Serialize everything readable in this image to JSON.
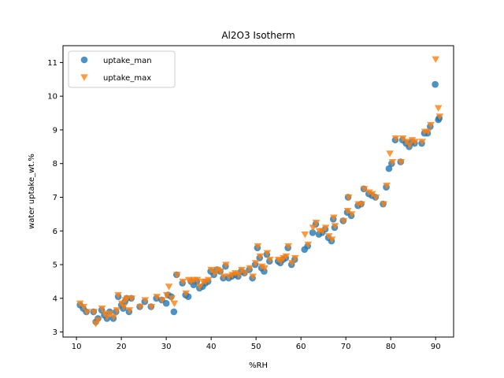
{
  "chart_data": {
    "type": "scatter",
    "title": "Al2O3 Isotherm",
    "xlabel": "%RH",
    "ylabel": "water uptake_wt.%",
    "xlim": [
      7.0,
      94.0
    ],
    "ylim": [
      2.85,
      11.5
    ],
    "xticks": [
      10,
      20,
      30,
      40,
      50,
      60,
      70,
      80,
      90
    ],
    "yticks": [
      3,
      4,
      5,
      6,
      7,
      8,
      9,
      10,
      11
    ],
    "grid": false,
    "legend_position": "top-left",
    "series": [
      {
        "name": "uptake_man",
        "marker": "circle",
        "color": "#1f77b4",
        "points": [
          [
            10.8,
            3.8
          ],
          [
            11.5,
            3.7
          ],
          [
            12.2,
            3.6
          ],
          [
            13.8,
            3.6
          ],
          [
            14.3,
            3.3
          ],
          [
            14.8,
            3.4
          ],
          [
            15.6,
            3.65
          ],
          [
            16.2,
            3.5
          ],
          [
            16.8,
            3.4
          ],
          [
            17.4,
            3.6
          ],
          [
            18.2,
            3.4
          ],
          [
            18.8,
            3.6
          ],
          [
            19.3,
            4.05
          ],
          [
            20.0,
            3.8
          ],
          [
            20.4,
            3.7
          ],
          [
            20.8,
            3.9
          ],
          [
            21.2,
            4.0
          ],
          [
            21.7,
            3.6
          ],
          [
            22.2,
            4.0
          ],
          [
            24.1,
            3.75
          ],
          [
            25.2,
            3.9
          ],
          [
            26.6,
            3.75
          ],
          [
            27.8,
            4.0
          ],
          [
            29.0,
            3.95
          ],
          [
            30.0,
            3.85
          ],
          [
            30.4,
            4.1
          ],
          [
            31.1,
            4.05
          ],
          [
            31.7,
            3.6
          ],
          [
            32.3,
            4.7
          ],
          [
            33.6,
            4.45
          ],
          [
            34.3,
            4.1
          ],
          [
            34.9,
            4.05
          ],
          [
            35.5,
            4.5
          ],
          [
            36.1,
            4.4
          ],
          [
            36.8,
            4.5
          ],
          [
            37.4,
            4.3
          ],
          [
            38.1,
            4.35
          ],
          [
            38.7,
            4.45
          ],
          [
            39.3,
            4.5
          ],
          [
            39.9,
            4.8
          ],
          [
            40.6,
            4.7
          ],
          [
            41.3,
            4.85
          ],
          [
            42.0,
            4.8
          ],
          [
            42.7,
            4.6
          ],
          [
            43.2,
            4.95
          ],
          [
            43.9,
            4.6
          ],
          [
            44.6,
            4.65
          ],
          [
            45.3,
            4.7
          ],
          [
            46.0,
            4.65
          ],
          [
            46.7,
            4.8
          ],
          [
            47.4,
            4.75
          ],
          [
            48.5,
            4.85
          ],
          [
            49.2,
            4.6
          ],
          [
            49.8,
            5.0
          ],
          [
            50.3,
            5.5
          ],
          [
            50.8,
            5.2
          ],
          [
            51.2,
            4.9
          ],
          [
            51.8,
            4.8
          ],
          [
            52.4,
            5.3
          ],
          [
            53.0,
            5.1
          ],
          [
            54.9,
            5.1
          ],
          [
            55.4,
            5.05
          ],
          [
            56.0,
            5.15
          ],
          [
            56.6,
            5.2
          ],
          [
            57.1,
            5.5
          ],
          [
            57.9,
            5.0
          ],
          [
            58.6,
            5.15
          ],
          [
            60.8,
            5.45
          ],
          [
            61.5,
            5.55
          ],
          [
            62.6,
            5.95
          ],
          [
            63.3,
            6.2
          ],
          [
            64.0,
            5.9
          ],
          [
            64.7,
            5.95
          ],
          [
            65.4,
            6.05
          ],
          [
            66.1,
            5.8
          ],
          [
            66.8,
            5.7
          ],
          [
            67.5,
            6.1
          ],
          [
            67.2,
            6.35
          ],
          [
            69.4,
            6.3
          ],
          [
            70.3,
            6.55
          ],
          [
            70.5,
            7.0
          ],
          [
            71.2,
            6.45
          ],
          [
            72.7,
            6.75
          ],
          [
            73.4,
            6.8
          ],
          [
            74.0,
            7.25
          ],
          [
            75.1,
            7.1
          ],
          [
            75.8,
            7.05
          ],
          [
            76.6,
            7.0
          ],
          [
            78.3,
            6.8
          ],
          [
            79.0,
            7.3
          ],
          [
            79.6,
            7.85
          ],
          [
            80.2,
            8.0
          ],
          [
            81.0,
            8.7
          ],
          [
            82.2,
            8.05
          ],
          [
            82.6,
            8.7
          ],
          [
            83.4,
            8.6
          ],
          [
            84.1,
            8.5
          ],
          [
            84.7,
            8.65
          ],
          [
            85.3,
            8.6
          ],
          [
            86.9,
            8.6
          ],
          [
            87.5,
            8.9
          ],
          [
            88.2,
            8.9
          ],
          [
            88.8,
            9.1
          ],
          [
            89.9,
            10.35
          ],
          [
            90.6,
            9.3
          ],
          [
            90.8,
            9.35
          ]
        ]
      },
      {
        "name": "uptake_max",
        "marker": "triangle-down",
        "color": "#ff7f0e",
        "points": [
          [
            10.8,
            3.85
          ],
          [
            11.6,
            3.75
          ],
          [
            12.3,
            3.6
          ],
          [
            13.9,
            3.6
          ],
          [
            14.3,
            3.25
          ],
          [
            14.8,
            3.35
          ],
          [
            15.7,
            3.7
          ],
          [
            16.3,
            3.55
          ],
          [
            16.8,
            3.45
          ],
          [
            17.5,
            3.55
          ],
          [
            18.3,
            3.45
          ],
          [
            19.0,
            3.65
          ],
          [
            19.3,
            4.1
          ],
          [
            20.1,
            3.85
          ],
          [
            20.5,
            3.75
          ],
          [
            20.9,
            3.95
          ],
          [
            21.3,
            4.0
          ],
          [
            21.8,
            3.65
          ],
          [
            22.3,
            4.0
          ],
          [
            24.2,
            3.75
          ],
          [
            25.3,
            3.95
          ],
          [
            26.7,
            3.75
          ],
          [
            27.9,
            4.05
          ],
          [
            29.1,
            3.95
          ],
          [
            30.1,
            4.1
          ],
          [
            30.6,
            4.35
          ],
          [
            31.2,
            4.0
          ],
          [
            31.8,
            3.85
          ],
          [
            32.4,
            4.7
          ],
          [
            33.7,
            4.5
          ],
          [
            34.4,
            4.15
          ],
          [
            35.0,
            4.55
          ],
          [
            35.6,
            4.5
          ],
          [
            36.2,
            4.55
          ],
          [
            36.9,
            4.55
          ],
          [
            37.5,
            4.35
          ],
          [
            38.2,
            4.5
          ],
          [
            38.8,
            4.5
          ],
          [
            39.4,
            4.55
          ],
          [
            40.0,
            4.85
          ],
          [
            40.7,
            4.75
          ],
          [
            41.4,
            4.85
          ],
          [
            42.1,
            4.8
          ],
          [
            42.8,
            4.65
          ],
          [
            43.3,
            5.0
          ],
          [
            44.0,
            4.65
          ],
          [
            44.7,
            4.7
          ],
          [
            45.4,
            4.75
          ],
          [
            46.1,
            4.7
          ],
          [
            46.8,
            4.85
          ],
          [
            47.5,
            4.75
          ],
          [
            48.6,
            4.9
          ],
          [
            49.3,
            4.65
          ],
          [
            49.9,
            5.05
          ],
          [
            50.4,
            5.55
          ],
          [
            50.9,
            5.25
          ],
          [
            51.3,
            4.95
          ],
          [
            51.9,
            4.9
          ],
          [
            52.5,
            5.35
          ],
          [
            53.1,
            5.15
          ],
          [
            55.0,
            5.15
          ],
          [
            55.5,
            5.1
          ],
          [
            56.1,
            5.2
          ],
          [
            56.7,
            5.25
          ],
          [
            57.2,
            5.55
          ],
          [
            58.0,
            5.05
          ],
          [
            58.7,
            5.2
          ],
          [
            60.9,
            5.9
          ],
          [
            61.6,
            5.6
          ],
          [
            62.7,
            6.1
          ],
          [
            63.4,
            6.25
          ],
          [
            64.1,
            6.0
          ],
          [
            64.8,
            6.0
          ],
          [
            65.5,
            6.1
          ],
          [
            66.2,
            5.85
          ],
          [
            66.9,
            5.75
          ],
          [
            67.6,
            6.15
          ],
          [
            67.3,
            6.4
          ],
          [
            69.5,
            6.3
          ],
          [
            70.4,
            6.6
          ],
          [
            70.6,
            7.0
          ],
          [
            71.3,
            6.5
          ],
          [
            72.8,
            6.8
          ],
          [
            73.5,
            6.8
          ],
          [
            74.1,
            7.25
          ],
          [
            75.2,
            7.15
          ],
          [
            75.9,
            7.1
          ],
          [
            76.7,
            7.0
          ],
          [
            78.4,
            6.8
          ],
          [
            79.1,
            7.35
          ],
          [
            79.8,
            8.3
          ],
          [
            80.4,
            8.05
          ],
          [
            81.1,
            8.75
          ],
          [
            82.3,
            8.05
          ],
          [
            82.7,
            8.75
          ],
          [
            83.5,
            8.65
          ],
          [
            84.2,
            8.55
          ],
          [
            84.8,
            8.7
          ],
          [
            85.4,
            8.65
          ],
          [
            87.0,
            8.65
          ],
          [
            87.6,
            8.95
          ],
          [
            88.3,
            8.95
          ],
          [
            88.9,
            9.15
          ],
          [
            90.0,
            11.1
          ],
          [
            90.6,
            9.65
          ],
          [
            90.9,
            9.4
          ]
        ]
      }
    ]
  }
}
